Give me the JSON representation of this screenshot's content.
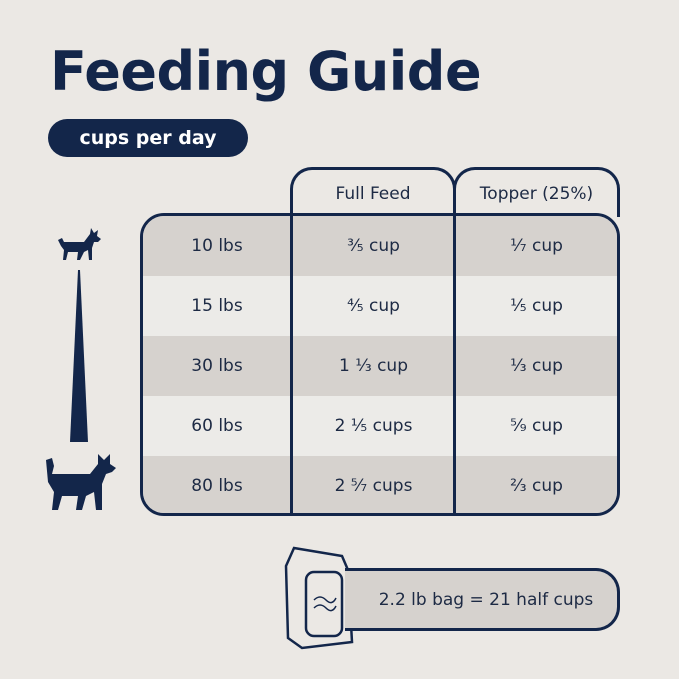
{
  "title": "Feeding Guide",
  "subtitle": "cups per day",
  "columns": [
    "Full Feed",
    "Topper (25%)"
  ],
  "rows": [
    {
      "weight": "10 lbs",
      "full": "³⁄₅ cup",
      "topper": "¹⁄₇ cup"
    },
    {
      "weight": "15 lbs",
      "full": "⁴⁄₅ cup",
      "topper": "¹⁄₅ cup"
    },
    {
      "weight": "30 lbs",
      "full": "1 ¹⁄₃ cup",
      "topper": "¹⁄₃ cup"
    },
    {
      "weight": "60 lbs",
      "full": "2 ¹⁄₅ cups",
      "topper": "⁵⁄₉ cup"
    },
    {
      "weight": "80 lbs",
      "full": "2 ⁵⁄₇ cups",
      "topper": "²⁄₃ cup"
    }
  ],
  "bag_note": "2.2 lb bag = 21 half cups",
  "icons": [
    "small-dog-icon",
    "size-scale-wedge-icon",
    "large-dog-icon",
    "food-bag-icon"
  ],
  "colors": {
    "navy": "#13264a",
    "row_dark": "#d6d2ce",
    "row_light": "#ecebe8",
    "background": "#ebe8e4"
  }
}
